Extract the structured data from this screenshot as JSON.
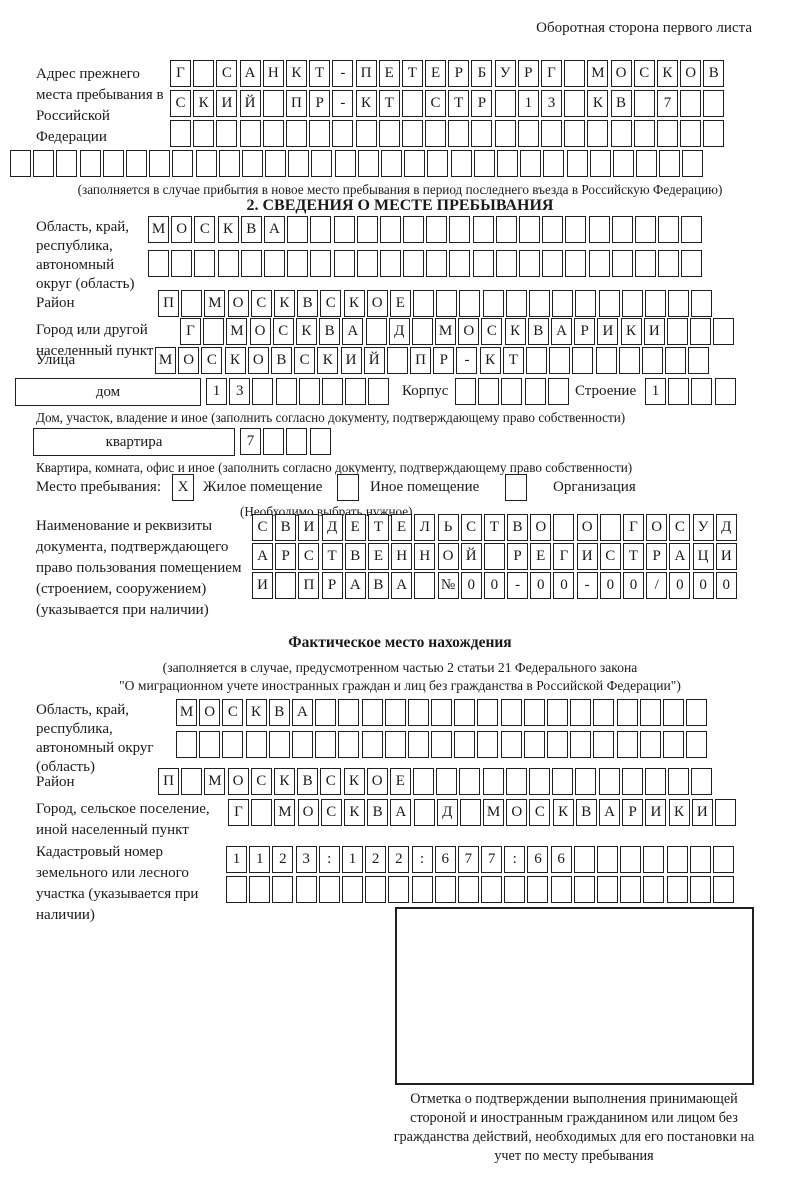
{
  "page": {
    "header_right": "Оборотная сторона первого листа"
  },
  "prev_address": {
    "label": "Адрес прежнего места пребывания в Российской Федерации",
    "row1": [
      "Г",
      "",
      "С",
      "А",
      "Н",
      "К",
      "Т",
      "-",
      "П",
      "Е",
      "Т",
      "Е",
      "Р",
      "Б",
      "У",
      "Р",
      "Г",
      "",
      "М",
      "О",
      "С",
      "К",
      "О",
      "В"
    ],
    "row2": [
      "С",
      "К",
      "И",
      "Й",
      "",
      "П",
      "Р",
      "-",
      "К",
      "Т",
      "",
      "С",
      "Т",
      "Р",
      "",
      "1",
      "3",
      "",
      "К",
      "В",
      "",
      "7",
      "",
      ""
    ],
    "row3": [
      "",
      "",
      "",
      "",
      "",
      "",
      "",
      "",
      "",
      "",
      "",
      "",
      "",
      "",
      "",
      "",
      "",
      "",
      "",
      "",
      "",
      "",
      "",
      ""
    ],
    "row4": [
      "",
      "",
      "",
      "",
      "",
      "",
      "",
      "",
      "",
      "",
      "",
      "",
      "",
      "",
      "",
      "",
      "",
      "",
      "",
      "",
      "",
      "",
      "",
      "",
      "",
      "",
      "",
      "",
      "",
      ""
    ],
    "note": "(заполняется в случае прибытия в новое место пребывания в период последнего въезда в Российскую Федерацию)"
  },
  "section2": {
    "title": "2. СВЕДЕНИЯ О МЕСТЕ ПРЕБЫВАНИЯ",
    "region": {
      "label": "Область, край, республика, автономный округ (область)",
      "row1": [
        "М",
        "О",
        "С",
        "К",
        "В",
        "А",
        "",
        "",
        "",
        "",
        "",
        "",
        "",
        "",
        "",
        "",
        "",
        "",
        "",
        "",
        "",
        "",
        "",
        ""
      ],
      "row2": [
        "",
        "",
        "",
        "",
        "",
        "",
        "",
        "",
        "",
        "",
        "",
        "",
        "",
        "",
        "",
        "",
        "",
        "",
        "",
        "",
        "",
        "",
        "",
        ""
      ]
    },
    "district": {
      "label": "Район",
      "cells": [
        "П",
        "",
        "М",
        "О",
        "С",
        "К",
        "В",
        "С",
        "К",
        "О",
        "Е",
        "",
        "",
        "",
        "",
        "",
        "",
        "",
        "",
        "",
        "",
        "",
        "",
        ""
      ]
    },
    "city": {
      "label": "Город или другой населенный пункт",
      "cells": [
        "Г",
        "",
        "М",
        "О",
        "С",
        "К",
        "В",
        "А",
        "",
        "Д",
        "",
        "М",
        "О",
        "С",
        "К",
        "В",
        "А",
        "Р",
        "И",
        "К",
        "И",
        "",
        "",
        ""
      ]
    },
    "street": {
      "label": "Улица",
      "cells": [
        "М",
        "О",
        "С",
        "К",
        "О",
        "В",
        "С",
        "К",
        "И",
        "Й",
        "",
        "П",
        "Р",
        "-",
        "К",
        "Т",
        "",
        "",
        "",
        "",
        "",
        "",
        "",
        ""
      ]
    },
    "house": {
      "box_label": "дом",
      "cells": [
        "1",
        "3",
        "",
        "",
        "",
        "",
        "",
        ""
      ],
      "korpus_label": "Корпус",
      "korpus_cells": [
        "",
        "",
        "",
        "",
        ""
      ],
      "stroenie_label": "Строение",
      "stroenie_cells": [
        "1",
        "",
        "",
        ""
      ]
    },
    "house_note": "Дом, участок, владение и иное (заполнить согласно документу, подтверждающему право собственности)",
    "apartment": {
      "box_label": "квартира",
      "cells": [
        "7",
        "",
        "",
        ""
      ]
    },
    "apartment_note": "Квартира, комната, офис и иное (заполнить согласно документу, подтверждающему право собственности)",
    "stay": {
      "label": "Место пребывания:",
      "options": [
        {
          "label": "Жилое помещение",
          "mark": "X"
        },
        {
          "label": "Иное помещение",
          "mark": ""
        },
        {
          "label": "Организация",
          "mark": ""
        }
      ],
      "note": "(Необходимо выбрать нужное)"
    },
    "document": {
      "label": "Наименование и реквизиты документа, подтверждающего право пользования помещением (строением, сооружением) (указывается при наличии)",
      "row1": [
        "С",
        "В",
        "И",
        "Д",
        "Е",
        "Т",
        "Е",
        "Л",
        "Ь",
        "С",
        "Т",
        "В",
        "О",
        "",
        "О",
        "",
        "Г",
        "О",
        "С",
        "У",
        "Д"
      ],
      "row2": [
        "А",
        "Р",
        "С",
        "Т",
        "В",
        "Е",
        "Н",
        "Н",
        "О",
        "Й",
        "",
        "Р",
        "Е",
        "Г",
        "И",
        "С",
        "Т",
        "Р",
        "А",
        "Ц",
        "И"
      ],
      "row3": [
        "И",
        "",
        "П",
        "Р",
        "А",
        "В",
        "А",
        "",
        "№",
        "0",
        "0",
        "-",
        "0",
        "0",
        "-",
        "0",
        "0",
        "/",
        "0",
        "0",
        "0"
      ]
    }
  },
  "actual_location": {
    "title": "Фактическое место нахождения",
    "note1": "(заполняется в случае, предусмотренном частью 2 статьи 21 Федерального закона",
    "note2": "\"О миграционном учете иностранных граждан и лиц без гражданства в Российской Федерации\")",
    "region": {
      "label": "Область, край, республика, автономный округ (область)",
      "row1": [
        "М",
        "О",
        "С",
        "К",
        "В",
        "А",
        "",
        "",
        "",
        "",
        "",
        "",
        "",
        "",
        "",
        "",
        "",
        "",
        "",
        "",
        "",
        "",
        ""
      ],
      "row2": [
        "",
        "",
        "",
        "",
        "",
        "",
        "",
        "",
        "",
        "",
        "",
        "",
        "",
        "",
        "",
        "",
        "",
        "",
        "",
        "",
        "",
        "",
        ""
      ]
    },
    "district": {
      "label": "Район",
      "cells": [
        "П",
        "",
        "М",
        "О",
        "С",
        "К",
        "В",
        "С",
        "К",
        "О",
        "Е",
        "",
        "",
        "",
        "",
        "",
        "",
        "",
        "",
        "",
        "",
        "",
        "",
        ""
      ]
    },
    "city": {
      "label": "Город, сельское поселение, иной населенный пункт",
      "cells": [
        "Г",
        "",
        "М",
        "О",
        "С",
        "К",
        "В",
        "А",
        "",
        "Д",
        "",
        "М",
        "О",
        "С",
        "К",
        "В",
        "А",
        "Р",
        "И",
        "К",
        "И",
        ""
      ]
    },
    "cadastral": {
      "label": "Кадастровый номер земельного или лесного участка (указывается при наличии)",
      "row1": [
        "1",
        "1",
        "2",
        "3",
        ":",
        "1",
        "2",
        "2",
        ":",
        "6",
        "7",
        "7",
        ":",
        "6",
        "6",
        "",
        "",
        "",
        "",
        "",
        "",
        ""
      ],
      "row2": [
        "",
        "",
        "",
        "",
        "",
        "",
        "",
        "",
        "",
        "",
        "",
        "",
        "",
        "",
        "",
        "",
        "",
        "",
        "",
        "",
        "",
        ""
      ]
    },
    "stamp_note": "Отметка о подтверждении выполнения принимающей стороной и иностранным гражданином или лицом без гражданства действий, необходимых для его постановки на учет по месту пребывания"
  }
}
